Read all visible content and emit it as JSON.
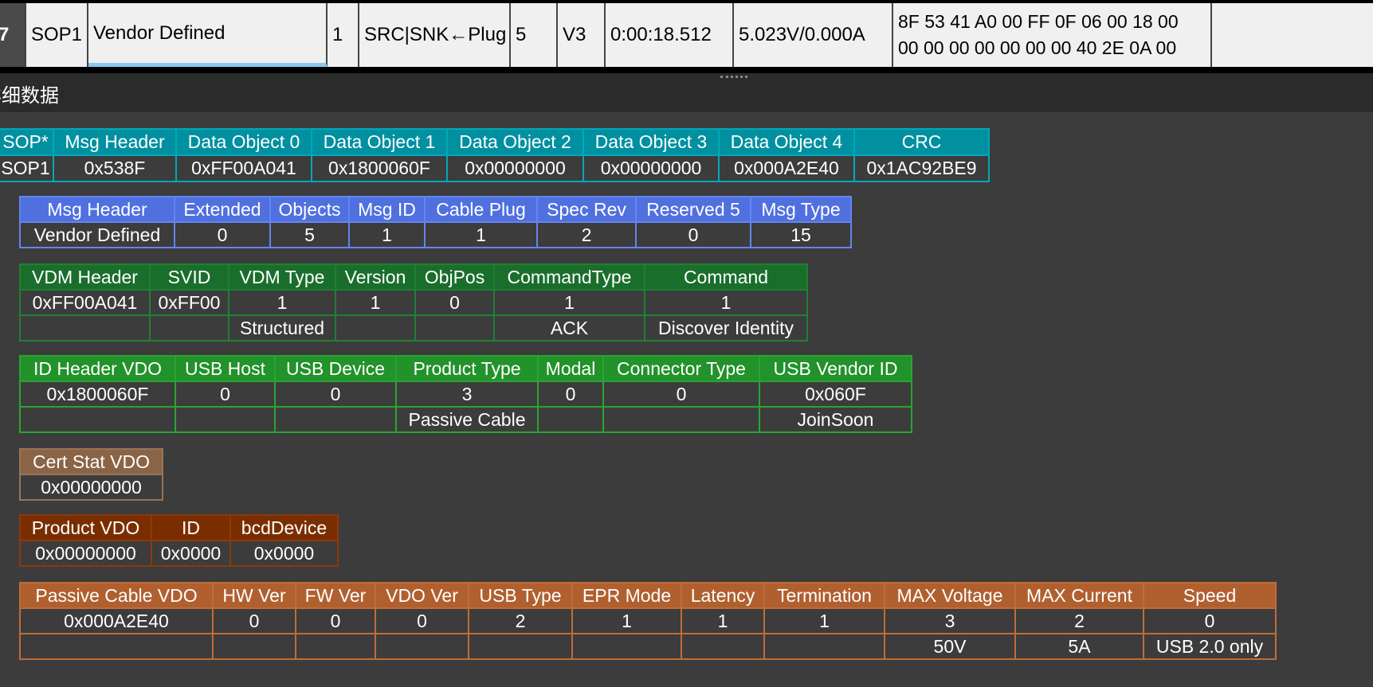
{
  "packet_row": {
    "index": "7",
    "sop": "SOP1",
    "msg_type": "Vendor Defined",
    "msg_id": "1",
    "direction": "SRC|SNK←Plug",
    "objects": "5",
    "spec_rev": "V3",
    "timestamp": "0:00:18.512",
    "vbus": "5.023V/0.000A",
    "raw_line1": "8F 53 41 A0 00 FF 0F 06 00 18 00",
    "raw_line2": "00 00 00 00 00 00 00 40 2E 0A 00"
  },
  "section_title": "详细数据",
  "tables": [
    {
      "id": "packet-overview",
      "color": "#0090a0",
      "border": "#00a8b8",
      "headers": [
        "SOP*",
        "Msg Header",
        "Data Object 0",
        "Data Object 1",
        "Data Object 2",
        "Data Object 3",
        "Data Object 4",
        "CRC"
      ],
      "rows": [
        [
          "SOP1",
          "0x538F",
          "0xFF00A041",
          "0x1800060F",
          "0x00000000",
          "0x00000000",
          "0x000A2E40",
          "0x1AC92BE9"
        ]
      ]
    },
    {
      "id": "msg-header",
      "color": "#5070e0",
      "border": "#6484f0",
      "headers": [
        "Msg Header",
        "Extended",
        "Objects",
        "Msg ID",
        "Cable Plug",
        "Spec Rev",
        "Reserved 5",
        "Msg Type"
      ],
      "rows": [
        [
          "Vendor Defined",
          "0",
          "5",
          "1",
          "1",
          "2",
          "0",
          "15"
        ]
      ]
    },
    {
      "id": "vdm-header",
      "color": "#1a6e2c",
      "border": "#1f8034",
      "headers": [
        "VDM Header",
        "SVID",
        "VDM Type",
        "Version",
        "ObjPos",
        "CommandType",
        "Command"
      ],
      "rows": [
        [
          "0xFF00A041",
          "0xFF00",
          "1",
          "1",
          "0",
          "1",
          "1"
        ],
        [
          "",
          "",
          "Structured",
          "",
          "",
          "ACK",
          "Discover Identity"
        ]
      ]
    },
    {
      "id": "id-header-vdo",
      "color": "#22922a",
      "border": "#2aa432",
      "headers": [
        "ID Header VDO",
        "USB Host",
        "USB Device",
        "Product Type",
        "Modal",
        "Connector Type",
        "USB Vendor ID"
      ],
      "rows": [
        [
          "0x1800060F",
          "0",
          "0",
          "3",
          "0",
          "0",
          "0x060F"
        ],
        [
          "",
          "",
          "",
          "Passive Cable",
          "",
          "",
          "JoinSoon"
        ]
      ]
    },
    {
      "id": "cert-stat-vdo",
      "color": "#8a6446",
      "border": "#9a7456",
      "headers": [
        "Cert Stat VDO"
      ],
      "rows": [
        [
          "0x00000000"
        ]
      ]
    },
    {
      "id": "product-vdo",
      "color": "#7a2e00",
      "border": "#8c3a0a",
      "headers": [
        "Product VDO",
        "ID",
        "bcdDevice"
      ],
      "rows": [
        [
          "0x00000000",
          "0x0000",
          "0x0000"
        ]
      ]
    },
    {
      "id": "passive-cable-vdo",
      "color": "#b0602f",
      "border": "#c06c38",
      "headers": [
        "Passive Cable VDO",
        "HW Ver",
        "FW Ver",
        "VDO Ver",
        "USB Type",
        "EPR Mode",
        "Latency",
        "Termination",
        "MAX Voltage",
        "MAX Current",
        "Speed"
      ],
      "rows": [
        [
          "0x000A2E40",
          "0",
          "0",
          "0",
          "2",
          "1",
          "1",
          "1",
          "3",
          "2",
          "0"
        ],
        [
          "",
          "",
          "",
          "",
          "",
          "",
          "",
          "",
          "50V",
          "5A",
          "USB 2.0 only"
        ]
      ]
    }
  ]
}
